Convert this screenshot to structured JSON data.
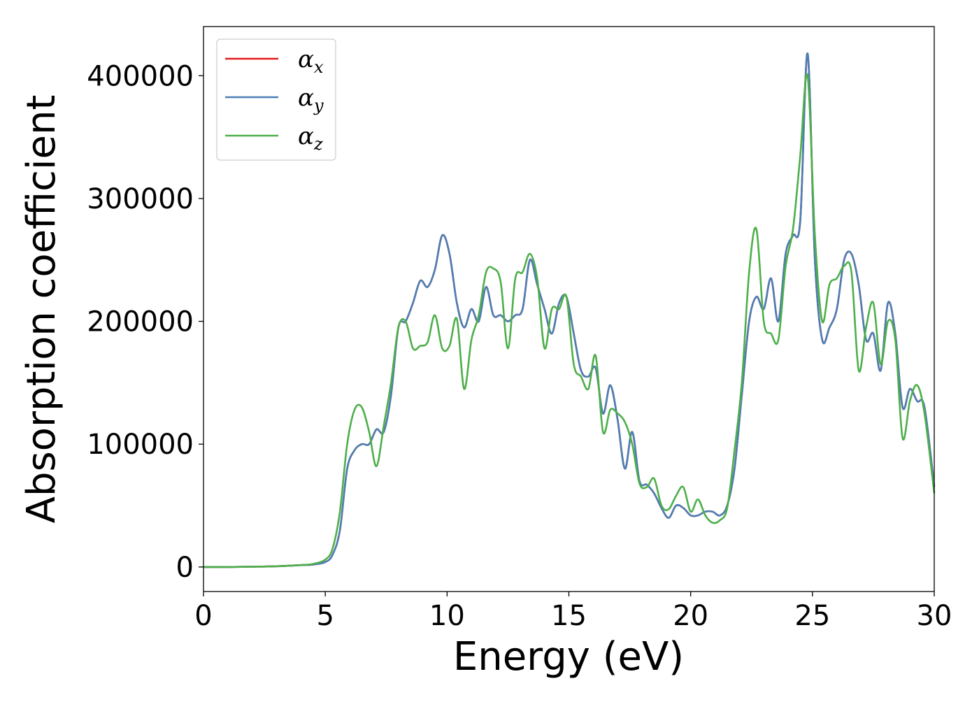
{
  "chart_data": {
    "type": "line",
    "title": "",
    "xlabel": "Energy (eV)",
    "ylabel": "Absorption coefficient",
    "xlim": [
      0,
      30
    ],
    "ylim": [
      -20000,
      440000
    ],
    "xticks": [
      0,
      5,
      10,
      15,
      20,
      25,
      30
    ],
    "xtick_labels": [
      "0",
      "5",
      "10",
      "15",
      "20",
      "25",
      "30"
    ],
    "yticks": [
      0,
      100000,
      200000,
      300000,
      400000
    ],
    "ytick_labels": [
      "0",
      "100000",
      "200000",
      "300000",
      "400000"
    ],
    "grid": false,
    "legend_position": "top-left",
    "series": [
      {
        "name": "α",
        "name_subscript": "x",
        "color": "#e41a1c",
        "x": [
          0,
          1,
          2,
          3,
          4,
          4.5,
          5,
          5.3,
          5.6,
          5.9,
          6.2,
          6.5,
          6.8,
          7.1,
          7.4,
          7.7,
          8.0,
          8.3,
          8.6,
          8.9,
          9.2,
          9.5,
          9.8,
          10.1,
          10.4,
          10.7,
          11.0,
          11.3,
          11.6,
          11.9,
          12.2,
          12.5,
          12.8,
          13.1,
          13.4,
          13.7,
          14.0,
          14.3,
          14.6,
          14.9,
          15.2,
          15.5,
          15.8,
          16.1,
          16.4,
          16.7,
          17.0,
          17.3,
          17.6,
          17.9,
          18.2,
          18.5,
          18.8,
          19.1,
          19.4,
          19.7,
          20.0,
          20.3,
          20.6,
          20.9,
          21.2,
          21.5,
          21.8,
          22.1,
          22.4,
          22.7,
          23.0,
          23.3,
          23.6,
          23.9,
          24.2,
          24.5,
          24.8,
          25.1,
          25.4,
          25.7,
          26.0,
          26.3,
          26.6,
          26.9,
          27.2,
          27.5,
          27.8,
          28.1,
          28.4,
          28.7,
          29.0,
          29.3,
          29.6,
          30.0
        ],
        "values": [
          0,
          0,
          200,
          600,
          1500,
          2000,
          4000,
          10000,
          30000,
          80000,
          95000,
          100000,
          100000,
          112000,
          110000,
          140000,
          195000,
          200000,
          215000,
          233000,
          228000,
          242000,
          270000,
          255000,
          215000,
          195000,
          210000,
          200000,
          228000,
          205000,
          205000,
          200000,
          205000,
          210000,
          250000,
          230000,
          210000,
          190000,
          215000,
          220000,
          190000,
          160000,
          155000,
          162000,
          125000,
          148000,
          120000,
          80000,
          110000,
          70000,
          67000,
          60000,
          48000,
          40000,
          50000,
          48000,
          42000,
          42000,
          45000,
          45000,
          42000,
          50000,
          80000,
          140000,
          200000,
          220000,
          210000,
          235000,
          200000,
          255000,
          270000,
          282000,
          418000,
          250000,
          185000,
          195000,
          210000,
          250000,
          255000,
          230000,
          185000,
          190000,
          160000,
          215000,
          190000,
          130000,
          145000,
          135000,
          130000,
          65000
        ]
      },
      {
        "name": "α",
        "name_subscript": "y",
        "color": "#4a7fb5",
        "x": [
          0,
          1,
          2,
          3,
          4,
          4.5,
          5,
          5.3,
          5.6,
          5.9,
          6.2,
          6.5,
          6.8,
          7.1,
          7.4,
          7.7,
          8.0,
          8.3,
          8.6,
          8.9,
          9.2,
          9.5,
          9.8,
          10.1,
          10.4,
          10.7,
          11.0,
          11.3,
          11.6,
          11.9,
          12.2,
          12.5,
          12.8,
          13.1,
          13.4,
          13.7,
          14.0,
          14.3,
          14.6,
          14.9,
          15.2,
          15.5,
          15.8,
          16.1,
          16.4,
          16.7,
          17.0,
          17.3,
          17.6,
          17.9,
          18.2,
          18.5,
          18.8,
          19.1,
          19.4,
          19.7,
          20.0,
          20.3,
          20.6,
          20.9,
          21.2,
          21.5,
          21.8,
          22.1,
          22.4,
          22.7,
          23.0,
          23.3,
          23.6,
          23.9,
          24.2,
          24.5,
          24.8,
          25.1,
          25.4,
          25.7,
          26.0,
          26.3,
          26.6,
          26.9,
          27.2,
          27.5,
          27.8,
          28.1,
          28.4,
          28.7,
          29.0,
          29.3,
          29.6,
          30.0
        ],
        "values": [
          0,
          0,
          200,
          600,
          1500,
          2000,
          4000,
          10000,
          30000,
          80000,
          95000,
          100000,
          100000,
          112000,
          110000,
          140000,
          195000,
          200000,
          215000,
          233000,
          228000,
          242000,
          270000,
          255000,
          215000,
          195000,
          210000,
          200000,
          228000,
          205000,
          205000,
          200000,
          205000,
          210000,
          250000,
          230000,
          210000,
          190000,
          215000,
          220000,
          190000,
          160000,
          155000,
          162000,
          125000,
          148000,
          120000,
          80000,
          110000,
          70000,
          67000,
          60000,
          48000,
          40000,
          50000,
          48000,
          42000,
          42000,
          45000,
          45000,
          42000,
          50000,
          80000,
          140000,
          200000,
          220000,
          210000,
          235000,
          200000,
          255000,
          270000,
          282000,
          418000,
          250000,
          185000,
          195000,
          210000,
          250000,
          255000,
          230000,
          185000,
          190000,
          160000,
          215000,
          190000,
          130000,
          145000,
          135000,
          130000,
          65000
        ]
      },
      {
        "name": "α",
        "name_subscript": "z",
        "color": "#4daf4a",
        "x": [
          0,
          1,
          2,
          3,
          4,
          4.5,
          5,
          5.3,
          5.6,
          5.9,
          6.2,
          6.5,
          6.8,
          7.1,
          7.4,
          7.7,
          8.0,
          8.3,
          8.6,
          8.9,
          9.2,
          9.5,
          9.8,
          10.1,
          10.4,
          10.7,
          11.0,
          11.3,
          11.6,
          11.9,
          12.2,
          12.5,
          12.8,
          13.1,
          13.4,
          13.7,
          14.0,
          14.3,
          14.6,
          14.9,
          15.2,
          15.5,
          15.8,
          16.1,
          16.4,
          16.7,
          17.0,
          17.3,
          17.6,
          17.9,
          18.2,
          18.5,
          18.8,
          19.1,
          19.4,
          19.7,
          20.0,
          20.3,
          20.6,
          20.9,
          21.2,
          21.5,
          21.8,
          22.1,
          22.4,
          22.7,
          23.0,
          23.3,
          23.6,
          23.9,
          24.2,
          24.5,
          24.8,
          25.1,
          25.4,
          25.7,
          26.0,
          26.3,
          26.6,
          26.9,
          27.2,
          27.5,
          27.8,
          28.1,
          28.4,
          28.7,
          29.0,
          29.3,
          29.6,
          30.0
        ],
        "values": [
          0,
          0,
          200,
          600,
          1500,
          2500,
          6000,
          15000,
          45000,
          100000,
          128000,
          130000,
          110000,
          82000,
          115000,
          150000,
          195000,
          200000,
          178000,
          180000,
          183000,
          205000,
          178000,
          180000,
          202000,
          145000,
          185000,
          205000,
          240000,
          243000,
          232000,
          178000,
          235000,
          240000,
          255000,
          235000,
          178000,
          210000,
          210000,
          220000,
          165000,
          155000,
          145000,
          172000,
          110000,
          128000,
          125000,
          118000,
          100000,
          68000,
          65000,
          72000,
          50000,
          47000,
          58000,
          65000,
          45000,
          55000,
          42000,
          36000,
          38000,
          48000,
          95000,
          150000,
          240000,
          275000,
          200000,
          190000,
          185000,
          245000,
          275000,
          335000,
          400000,
          270000,
          200000,
          230000,
          235000,
          245000,
          240000,
          160000,
          195000,
          215000,
          165000,
          200000,
          185000,
          105000,
          135000,
          148000,
          125000,
          60000
        ]
      }
    ]
  }
}
